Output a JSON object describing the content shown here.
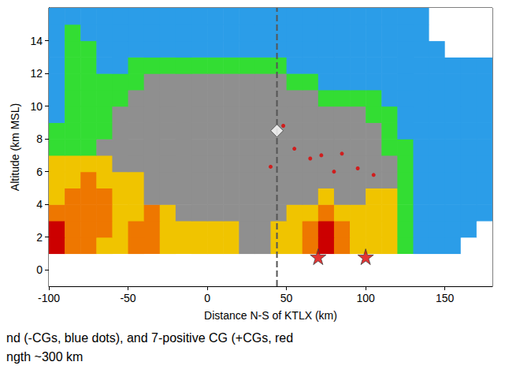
{
  "chart_data": {
    "type": "heatmap",
    "x_label": "Distance N-S of KTLX (km)",
    "y_label": "Altitude (km MSL)",
    "xlim": [
      -100,
      180
    ],
    "xticks": [
      -100,
      -50,
      0,
      50,
      100,
      150
    ],
    "ylim": [
      -1,
      16
    ],
    "yticks": [
      0,
      2,
      4,
      6,
      8,
      10,
      12,
      14
    ],
    "grid": false,
    "annotations": [
      "nd (-CGs, blue dots), and 7-positive CG (+CGs, red",
      "ngth ~300 km"
    ],
    "series": [
      {
        "type": "heatmap",
        "x_bins": [
          -100,
          -90,
          -80,
          -70,
          -60,
          -50,
          -40,
          -30,
          -20,
          -10,
          0,
          10,
          20,
          30,
          40,
          50,
          60,
          70,
          80,
          90,
          100,
          110,
          120,
          130,
          140,
          150,
          160,
          170,
          180
        ],
        "y_bins": [
          -1,
          0,
          1,
          2,
          3,
          4,
          5,
          6,
          7,
          8,
          9,
          10,
          11,
          12,
          13,
          14,
          15,
          16
        ],
        "colors": [
          "#ffffff",
          "#2b9de8",
          "#33dd33",
          "#8f8f8f",
          "#f0c400",
          "#ee7700",
          "#cc0000"
        ],
        "levels": [
          [
            0,
            0,
            0,
            0,
            0,
            0,
            0,
            0,
            0,
            0,
            0,
            0,
            0,
            0,
            0,
            0,
            0,
            0,
            0,
            0,
            0,
            0,
            0,
            0,
            0,
            0,
            0,
            0
          ],
          [
            0,
            0,
            0,
            0,
            0,
            0,
            0,
            0,
            0,
            0,
            0,
            0,
            0,
            0,
            0,
            0,
            0,
            0,
            0,
            0,
            0,
            0,
            0,
            0,
            0,
            0,
            0,
            0
          ],
          [
            6,
            5,
            5,
            4,
            4,
            5,
            5,
            4,
            4,
            4,
            4,
            4,
            3,
            3,
            4,
            4,
            5,
            6,
            5,
            4,
            4,
            4,
            2,
            1,
            1,
            1,
            0,
            0
          ],
          [
            6,
            5,
            5,
            5,
            4,
            5,
            5,
            4,
            4,
            4,
            4,
            4,
            3,
            3,
            4,
            4,
            5,
            6,
            5,
            4,
            4,
            4,
            2,
            1,
            1,
            1,
            1,
            0
          ],
          [
            5,
            5,
            5,
            5,
            4,
            4,
            5,
            4,
            3,
            3,
            3,
            3,
            3,
            3,
            3,
            4,
            4,
            5,
            4,
            4,
            4,
            4,
            2,
            1,
            1,
            1,
            1,
            1
          ],
          [
            4,
            5,
            5,
            5,
            4,
            4,
            3,
            3,
            3,
            3,
            3,
            3,
            3,
            3,
            3,
            3,
            3,
            4,
            3,
            3,
            4,
            4,
            2,
            1,
            1,
            1,
            1,
            1
          ],
          [
            4,
            4,
            5,
            4,
            4,
            4,
            3,
            3,
            3,
            3,
            3,
            3,
            3,
            3,
            3,
            3,
            3,
            3,
            3,
            3,
            3,
            3,
            2,
            1,
            1,
            1,
            1,
            1
          ],
          [
            4,
            4,
            4,
            4,
            3,
            3,
            3,
            3,
            3,
            3,
            3,
            3,
            3,
            3,
            3,
            3,
            3,
            3,
            3,
            3,
            3,
            3,
            2,
            1,
            1,
            1,
            1,
            1
          ],
          [
            2,
            2,
            2,
            3,
            3,
            3,
            3,
            3,
            3,
            3,
            3,
            3,
            3,
            3,
            3,
            3,
            3,
            3,
            3,
            3,
            3,
            2,
            2,
            1,
            1,
            1,
            1,
            1
          ],
          [
            2,
            2,
            2,
            2,
            3,
            3,
            3,
            3,
            3,
            3,
            3,
            3,
            3,
            3,
            3,
            3,
            3,
            3,
            3,
            3,
            3,
            2,
            1,
            1,
            1,
            1,
            1,
            1
          ],
          [
            1,
            2,
            2,
            2,
            3,
            3,
            3,
            3,
            3,
            3,
            3,
            3,
            3,
            3,
            3,
            3,
            3,
            3,
            3,
            3,
            2,
            2,
            1,
            1,
            1,
            1,
            1,
            1
          ],
          [
            1,
            2,
            2,
            2,
            2,
            3,
            3,
            3,
            3,
            3,
            3,
            3,
            3,
            3,
            3,
            3,
            3,
            2,
            2,
            2,
            2,
            1,
            1,
            1,
            1,
            1,
            1,
            1
          ],
          [
            1,
            2,
            2,
            2,
            2,
            2,
            3,
            3,
            3,
            3,
            3,
            3,
            3,
            3,
            3,
            2,
            2,
            1,
            1,
            1,
            1,
            1,
            1,
            1,
            1,
            1,
            1,
            1
          ],
          [
            1,
            2,
            2,
            1,
            1,
            2,
            2,
            2,
            2,
            2,
            2,
            2,
            2,
            2,
            2,
            1,
            1,
            1,
            1,
            1,
            1,
            1,
            1,
            1,
            1,
            1,
            1,
            1
          ],
          [
            1,
            2,
            2,
            1,
            1,
            1,
            1,
            1,
            1,
            1,
            1,
            1,
            1,
            1,
            1,
            1,
            1,
            1,
            1,
            1,
            1,
            1,
            1,
            1,
            1,
            0,
            0,
            0
          ],
          [
            1,
            2,
            1,
            1,
            1,
            1,
            1,
            1,
            1,
            1,
            1,
            1,
            1,
            1,
            1,
            1,
            1,
            1,
            1,
            1,
            1,
            1,
            1,
            1,
            0,
            0,
            0,
            0
          ],
          [
            1,
            1,
            1,
            1,
            1,
            1,
            1,
            1,
            1,
            1,
            1,
            1,
            1,
            1,
            1,
            1,
            1,
            1,
            1,
            1,
            1,
            1,
            1,
            1,
            0,
            0,
            0,
            0
          ]
        ]
      },
      {
        "type": "line",
        "line_style": "dashed",
        "color": "#555555",
        "x": [
          44,
          44
        ],
        "y": [
          -1,
          16
        ]
      },
      {
        "type": "scatter",
        "marker": "diamond",
        "color": "#ffffff",
        "x": [
          44
        ],
        "y": [
          8.5
        ]
      },
      {
        "type": "scatter",
        "marker": "circle",
        "color": "#e00000",
        "x": [
          48,
          55,
          65,
          72,
          80,
          85,
          95,
          105,
          40
        ],
        "y": [
          8.8,
          7.4,
          6.8,
          7.0,
          6.0,
          7.1,
          6.2,
          5.8,
          6.3
        ]
      },
      {
        "type": "scatter",
        "marker": "star",
        "color": "#dd0000",
        "x": [
          70,
          100
        ],
        "y": [
          0.8,
          0.8
        ]
      }
    ]
  }
}
